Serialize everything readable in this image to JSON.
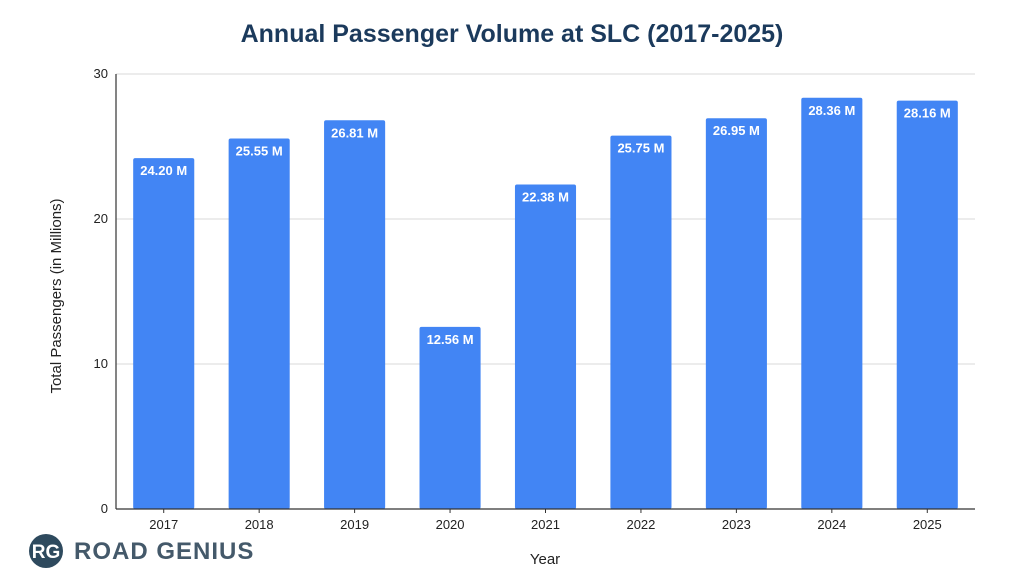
{
  "chart_data": {
    "type": "bar",
    "title": "Annual Passenger Volume at SLC (2017-2025)",
    "xlabel": "Year",
    "ylabel": "Total Passengers (in Millions)",
    "categories": [
      "2017",
      "2018",
      "2019",
      "2020",
      "2021",
      "2022",
      "2023",
      "2024",
      "2025"
    ],
    "values": [
      24.2,
      25.55,
      26.81,
      12.56,
      22.38,
      25.75,
      26.95,
      28.36,
      28.16
    ],
    "data_labels": [
      "24.20 M",
      "25.55 M",
      "26.81 M",
      "12.56 M",
      "22.38 M",
      "25.75 M",
      "26.95 M",
      "28.36 M",
      "28.16 M"
    ],
    "ylim": [
      0,
      30
    ],
    "yticks": [
      "0",
      "10",
      "20",
      "30"
    ],
    "ytick_values": [
      0,
      10,
      20,
      30
    ],
    "grid": true,
    "legend": "none"
  },
  "branding": {
    "logo_mark": "RG",
    "name": "ROAD GENIUS"
  },
  "colors": {
    "bar": "#4285F4",
    "title": "#1B3A5C",
    "grid": "#D9D9D9",
    "axis": "#333333",
    "logo_circle": "#2E4A5E",
    "brand_text": "#44596A"
  }
}
